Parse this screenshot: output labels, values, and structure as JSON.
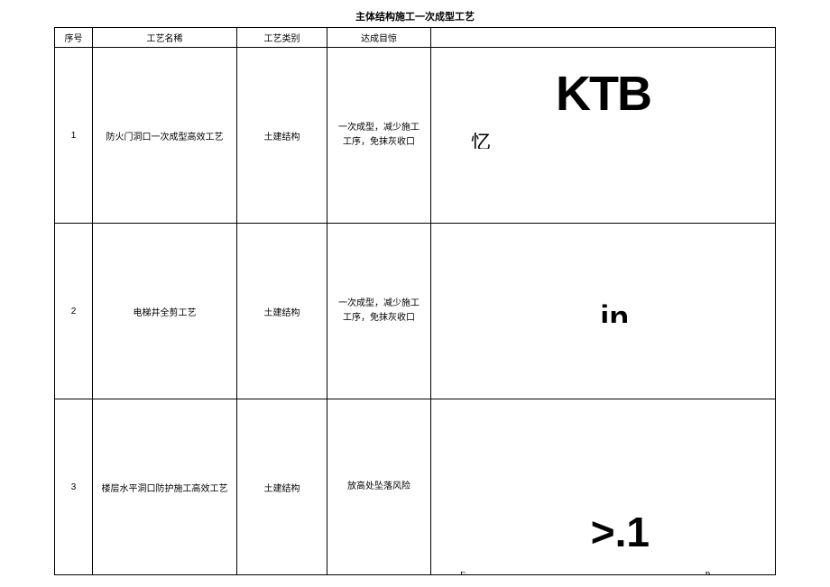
{
  "title": "主体结构施工一次成型工艺",
  "headers": {
    "seq": "序号",
    "name": "工艺名稀",
    "type": "工艺类别",
    "goal": "达成目惊",
    "img": ""
  },
  "rows": [
    {
      "seq": "1",
      "name": "防火门洞口一次成型高效工艺",
      "type": "土建结构",
      "goal": "一次成型，减少施工工序，免抹灰收口",
      "graphic": {
        "ktb": "KTB",
        "sub": "忆"
      }
    },
    {
      "seq": "2",
      "name": "电梯井全剪工艺",
      "type": "土建结构",
      "goal": "一次成型，减少施工工序，免抹灰收口",
      "graphic": {
        "in": "in"
      }
    },
    {
      "seq": "3",
      "name": "楼层水平洞口防护施工高效工艺",
      "type": "土建结构",
      "goal": "放高处坠落风险",
      "graphic": {
        "gt1": ">.1",
        "f": "F·",
        "p": "P"
      }
    }
  ],
  "colors": {
    "border": "#000000",
    "background": "#ffffff",
    "text": "#000000"
  }
}
